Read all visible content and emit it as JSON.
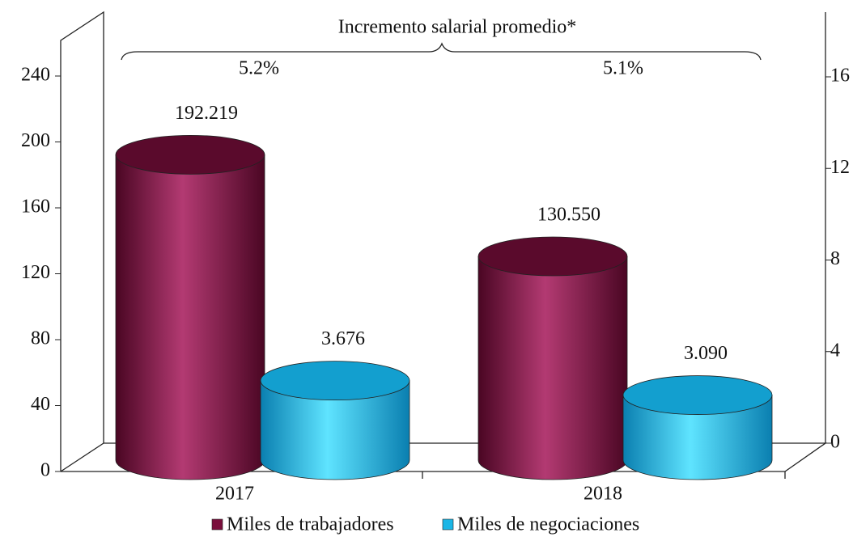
{
  "chart_data": {
    "type": "bar",
    "categories": [
      "2017",
      "2018"
    ],
    "series": [
      {
        "name": "Miles de trabajadores",
        "color": "#7a0e3c",
        "values": [
          192.219,
          130.55
        ],
        "value_labels": [
          "192.219",
          "130.550"
        ]
      },
      {
        "name": "Miles de negociaciones",
        "color": "#1ab6e6",
        "axis": "y2",
        "values": [
          3.676,
          3.09
        ],
        "value_labels": [
          "3.676",
          "3.090"
        ]
      }
    ],
    "ylim": [
      0,
      240
    ],
    "yticks": [
      0,
      40,
      80,
      120,
      160,
      200,
      240
    ],
    "y2lim": [
      0,
      16
    ],
    "y2ticks": [
      0,
      4,
      8,
      12,
      16
    ],
    "annotations": [
      "Incremento salarial promedio*",
      "5.2%",
      "5.1%"
    ],
    "legend": "bottom"
  }
}
